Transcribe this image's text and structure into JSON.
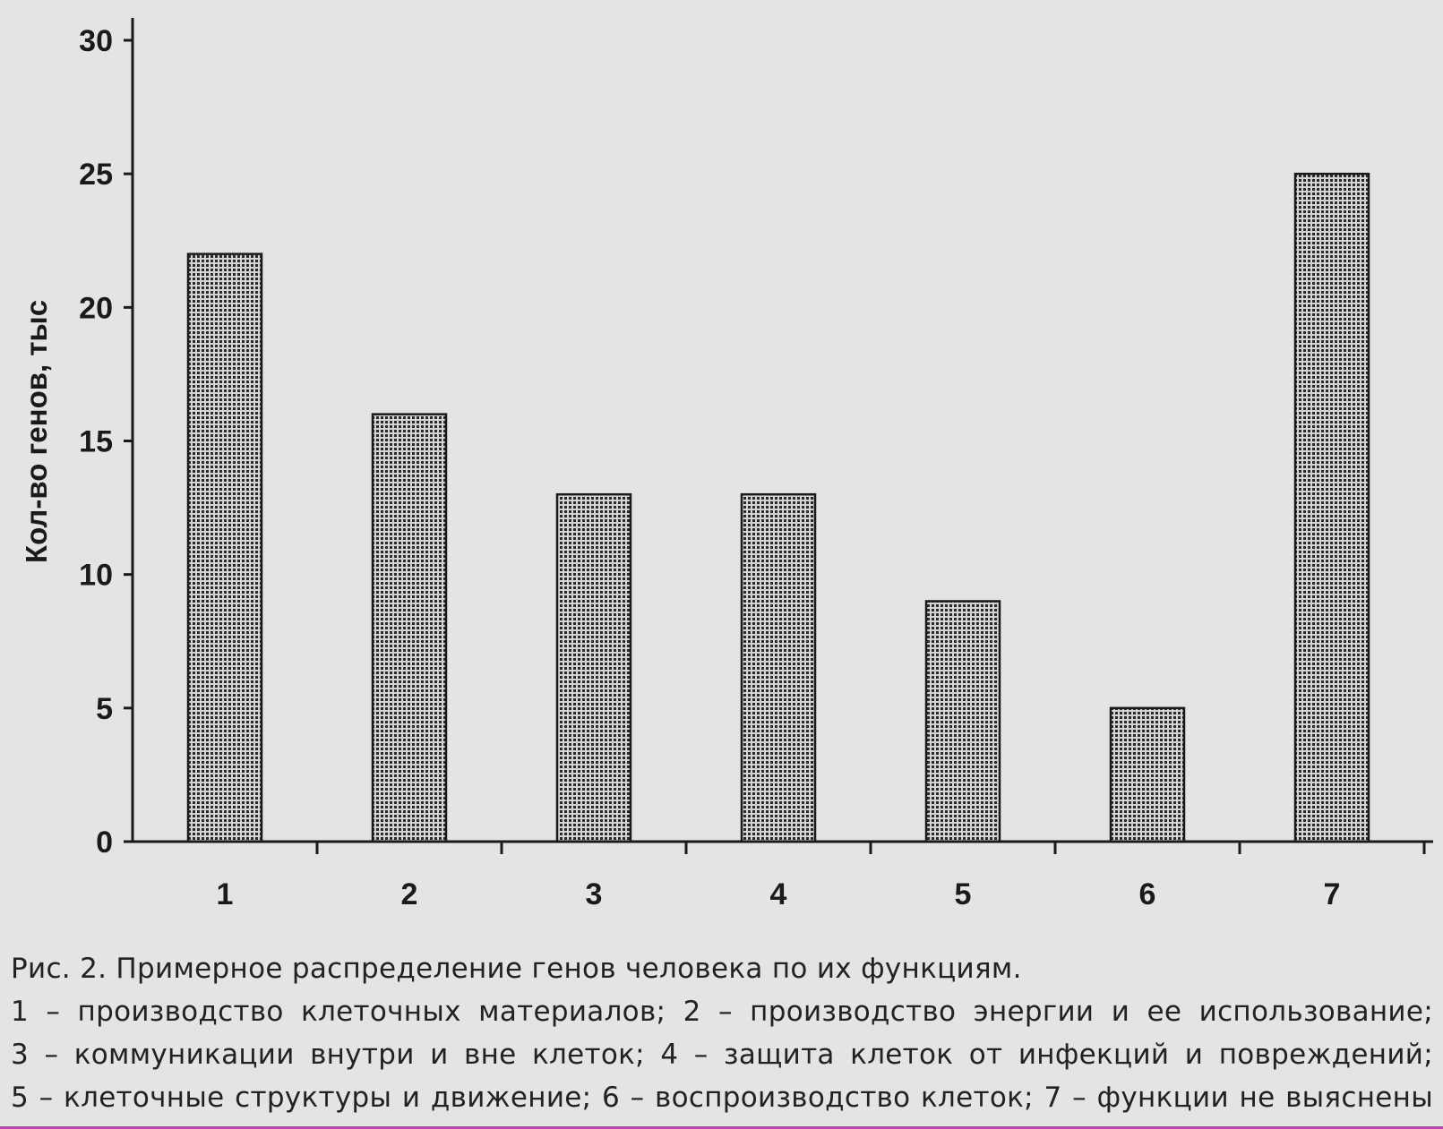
{
  "chart_data": {
    "type": "bar",
    "categories": [
      "1",
      "2",
      "3",
      "4",
      "5",
      "6",
      "7"
    ],
    "values": [
      22,
      16,
      13,
      13,
      9,
      5,
      25
    ],
    "title": "",
    "xlabel": "",
    "ylabel": "Кол-во генов, тыс",
    "ylim": [
      0,
      30
    ],
    "yticks": [
      0,
      5,
      10,
      15,
      20,
      25,
      30
    ],
    "grid": false,
    "legend": "none",
    "bar_pattern": "dotted-grid",
    "colors": {
      "background": "#e4e4e4",
      "bar_fill": "#c9c9c9",
      "bar_dots": "#2a2a2a",
      "axis": "#1a1a1a"
    }
  },
  "caption": {
    "line1": "Рис. 2. Примерное распределение генов человека по их функциям.",
    "line2": "1 – производство клеточных материалов; 2 – производство энергии и ее использование;",
    "line3": "3 – коммуникации внутри и вне клеток; 4 – защита клеток от инфекций и повреждений;",
    "line4": "5 – клеточные структуры и движение; 6 – воспроизводство клеток; 7 – функции не выяснены"
  }
}
